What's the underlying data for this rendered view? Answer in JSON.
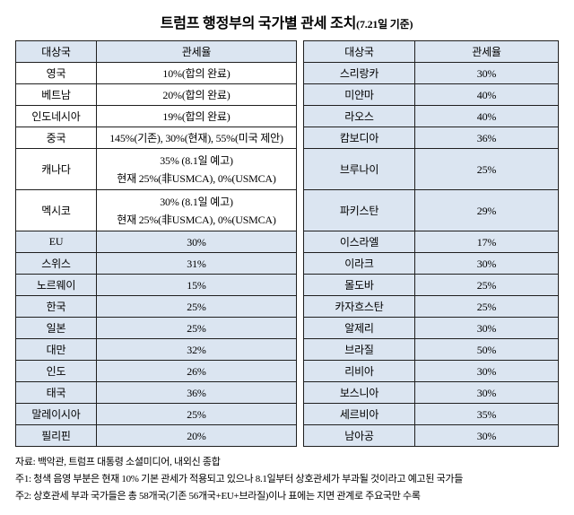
{
  "title": {
    "main": "트럼프 행정부의 국가별 관세 조치",
    "suffix": "(7.21일 기준)"
  },
  "chart_data": {
    "type": "table",
    "title": "트럼프 행정부의 국가별 관세 조치(7.21일 기준)",
    "headers": {
      "country": "대상국",
      "rate": "관세율"
    },
    "shading_meaning": "청색 음영: 현재 10% 기본 관세 적용 중이나 8.1일부터 상호관세 부과 예고 국가",
    "rows": [
      {
        "tall": false,
        "left": {
          "country": "영국",
          "rate": [
            "10%(합의 완료)"
          ],
          "shaded": false
        },
        "right": {
          "country": "스리랑카",
          "rate": [
            "30%"
          ],
          "shaded": true
        }
      },
      {
        "tall": false,
        "left": {
          "country": "베트남",
          "rate": [
            "20%(합의 완료)"
          ],
          "shaded": false
        },
        "right": {
          "country": "미얀마",
          "rate": [
            "40%"
          ],
          "shaded": true
        }
      },
      {
        "tall": false,
        "left": {
          "country": "인도네시아",
          "rate": [
            "19%(합의 완료)"
          ],
          "shaded": false
        },
        "right": {
          "country": "라오스",
          "rate": [
            "40%"
          ],
          "shaded": true
        }
      },
      {
        "tall": false,
        "left": {
          "country": "중국",
          "rate": [
            "145%(기존), 30%(현재), 55%(미국 제안)"
          ],
          "shaded": false
        },
        "right": {
          "country": "캄보디아",
          "rate": [
            "36%"
          ],
          "shaded": true
        }
      },
      {
        "tall": true,
        "left": {
          "country": "캐나다",
          "rate": [
            "35% (8.1일 예고)",
            "현재 25%(非USMCA), 0%(USMCA)"
          ],
          "shaded": false
        },
        "right": {
          "country": "브루나이",
          "rate": [
            "25%"
          ],
          "shaded": true
        }
      },
      {
        "tall": true,
        "left": {
          "country": "멕시코",
          "rate": [
            "30% (8.1일 예고)",
            "현재 25%(非USMCA), 0%(USMCA)"
          ],
          "shaded": false
        },
        "right": {
          "country": "파키스탄",
          "rate": [
            "29%"
          ],
          "shaded": true
        }
      },
      {
        "tall": false,
        "left": {
          "country": "EU",
          "rate": [
            "30%"
          ],
          "shaded": true
        },
        "right": {
          "country": "이스라엘",
          "rate": [
            "17%"
          ],
          "shaded": true
        }
      },
      {
        "tall": false,
        "left": {
          "country": "스위스",
          "rate": [
            "31%"
          ],
          "shaded": true
        },
        "right": {
          "country": "이라크",
          "rate": [
            "30%"
          ],
          "shaded": true
        }
      },
      {
        "tall": false,
        "left": {
          "country": "노르웨이",
          "rate": [
            "15%"
          ],
          "shaded": true
        },
        "right": {
          "country": "몰도바",
          "rate": [
            "25%"
          ],
          "shaded": true
        }
      },
      {
        "tall": false,
        "left": {
          "country": "한국",
          "rate": [
            "25%"
          ],
          "shaded": true
        },
        "right": {
          "country": "카자흐스탄",
          "rate": [
            "25%"
          ],
          "shaded": true
        }
      },
      {
        "tall": false,
        "left": {
          "country": "일본",
          "rate": [
            "25%"
          ],
          "shaded": true
        },
        "right": {
          "country": "알제리",
          "rate": [
            "30%"
          ],
          "shaded": true
        }
      },
      {
        "tall": false,
        "left": {
          "country": "대만",
          "rate": [
            "32%"
          ],
          "shaded": true
        },
        "right": {
          "country": "브라질",
          "rate": [
            "50%"
          ],
          "shaded": true
        }
      },
      {
        "tall": false,
        "left": {
          "country": "인도",
          "rate": [
            "26%"
          ],
          "shaded": true
        },
        "right": {
          "country": "리비아",
          "rate": [
            "30%"
          ],
          "shaded": true
        }
      },
      {
        "tall": false,
        "left": {
          "country": "태국",
          "rate": [
            "36%"
          ],
          "shaded": true
        },
        "right": {
          "country": "보스니아",
          "rate": [
            "30%"
          ],
          "shaded": true
        }
      },
      {
        "tall": false,
        "left": {
          "country": "말레이시아",
          "rate": [
            "25%"
          ],
          "shaded": true
        },
        "right": {
          "country": "세르비아",
          "rate": [
            "35%"
          ],
          "shaded": true
        }
      },
      {
        "tall": false,
        "left": {
          "country": "필리핀",
          "rate": [
            "20%"
          ],
          "shaded": true
        },
        "right": {
          "country": "남아공",
          "rate": [
            "30%"
          ],
          "shaded": true
        }
      }
    ]
  },
  "notes": [
    "자료: 백악관, 트럼프 대통령 소셜미디어, 내외신 종합",
    "주1: 청색 음영 부분은 현재 10% 기본 관세가 적용되고 있으나 8.1일부터 상호관세가 부과될 것이라고 예고된 국가들",
    "주2: 상호관세 부과 국가들은 총 58개국(기존 56개국+EU+브라질)이나 표에는 지면 관계로 주요국만 수록"
  ],
  "colors": {
    "shade": "#dbe5f1",
    "border": "#1f1f1f",
    "text": "#000000"
  }
}
